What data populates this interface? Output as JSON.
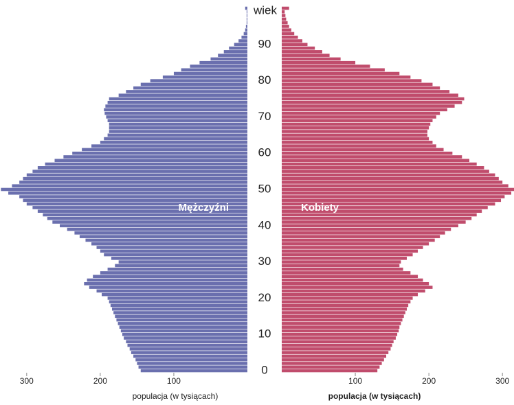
{
  "chart_data": {
    "type": "pyramid",
    "ylabel": "wiek",
    "y": [
      0,
      1,
      2,
      3,
      4,
      5,
      6,
      7,
      8,
      9,
      10,
      11,
      12,
      13,
      14,
      15,
      16,
      17,
      18,
      19,
      20,
      21,
      22,
      23,
      24,
      25,
      26,
      27,
      28,
      29,
      30,
      31,
      32,
      33,
      34,
      35,
      36,
      37,
      38,
      39,
      40,
      41,
      42,
      43,
      44,
      45,
      46,
      47,
      48,
      49,
      50,
      51,
      52,
      53,
      54,
      55,
      56,
      57,
      58,
      59,
      60,
      61,
      62,
      63,
      64,
      65,
      66,
      67,
      68,
      69,
      70,
      71,
      72,
      73,
      74,
      75,
      76,
      77,
      78,
      79,
      80,
      81,
      82,
      83,
      84,
      85,
      86,
      87,
      88,
      89,
      90,
      91,
      92,
      93,
      94,
      95,
      96,
      97,
      98,
      99,
      100
    ],
    "yticks": [
      0,
      10,
      20,
      30,
      40,
      50,
      60,
      70,
      80,
      90
    ],
    "xlim": [
      0,
      340
    ],
    "series": [
      {
        "name": "Mężczyźni",
        "side": "left",
        "color": "#6a6fae",
        "xlabel": "populacja (w tysiącach)",
        "xticks": [
          300,
          200,
          100
        ],
        "values": [
          145,
          148,
          150,
          152,
          155,
          158,
          160,
          163,
          165,
          168,
          170,
          172,
          174,
          176,
          178,
          180,
          182,
          184,
          186,
          188,
          190,
          198,
          205,
          215,
          222,
          218,
          210,
          200,
          190,
          180,
          175,
          185,
          195,
          200,
          205,
          212,
          220,
          228,
          235,
          245,
          255,
          265,
          272,
          278,
          285,
          292,
          300,
          305,
          310,
          325,
          335,
          320,
          310,
          305,
          300,
          292,
          285,
          275,
          262,
          250,
          238,
          225,
          212,
          200,
          195,
          190,
          188,
          188,
          188,
          190,
          192,
          194,
          195,
          193,
          190,
          188,
          175,
          165,
          155,
          145,
          132,
          115,
          100,
          90,
          78,
          65,
          50,
          40,
          32,
          25,
          18,
          12,
          8,
          5,
          3,
          2,
          1,
          1,
          1,
          1,
          3
        ]
      },
      {
        "name": "Kobiety",
        "side": "right",
        "color": "#c04c6c",
        "xlabel": "populacja (w tysiącach)",
        "xticks": [
          100,
          200,
          300
        ],
        "values": [
          130,
          133,
          136,
          139,
          142,
          145,
          148,
          150,
          152,
          155,
          157,
          159,
          160,
          162,
          164,
          166,
          168,
          170,
          172,
          175,
          178,
          185,
          195,
          205,
          200,
          192,
          185,
          175,
          165,
          160,
          162,
          170,
          178,
          185,
          192,
          200,
          208,
          215,
          222,
          230,
          240,
          250,
          258,
          265,
          272,
          280,
          290,
          298,
          303,
          312,
          318,
          308,
          300,
          295,
          290,
          282,
          275,
          265,
          255,
          245,
          232,
          220,
          210,
          205,
          200,
          198,
          198,
          200,
          202,
          205,
          210,
          215,
          225,
          235,
          245,
          248,
          240,
          228,
          215,
          205,
          190,
          175,
          160,
          140,
          120,
          100,
          80,
          65,
          55,
          45,
          35,
          28,
          22,
          17,
          13,
          10,
          8,
          6,
          5,
          4,
          10
        ]
      }
    ]
  }
}
